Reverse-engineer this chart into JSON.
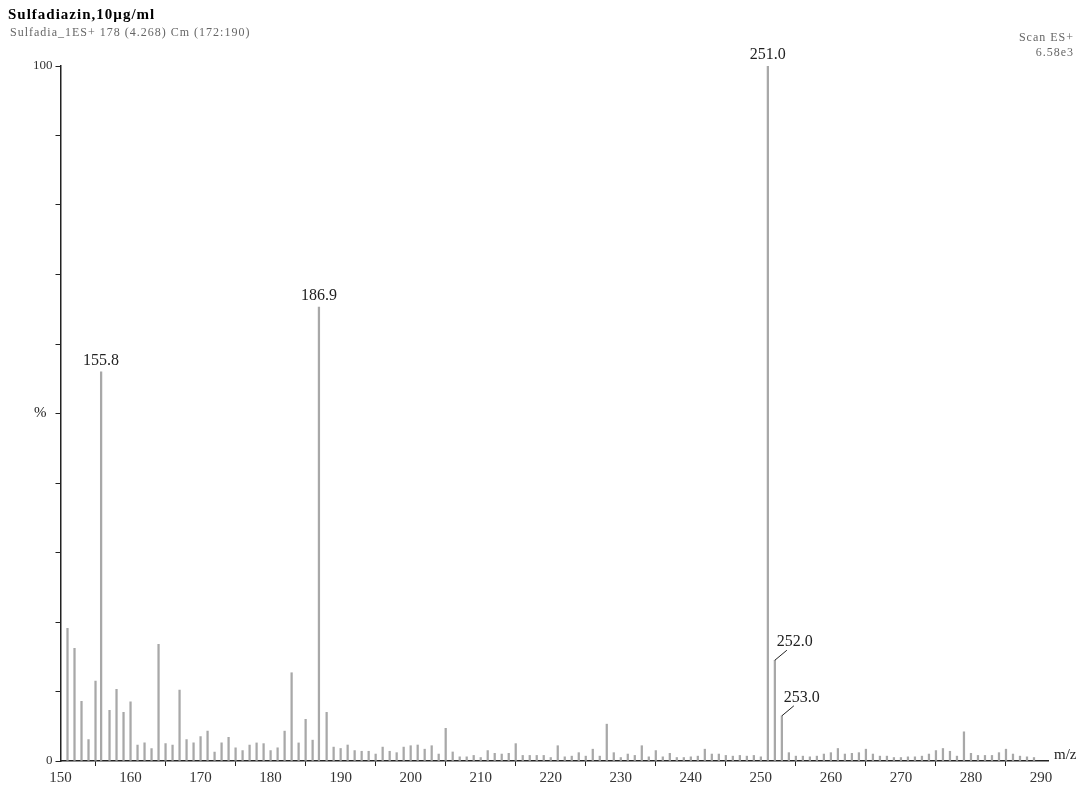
{
  "chart_data": {
    "type": "bar",
    "title": "Sulfadiazin,10µg/ml",
    "subtitle": "Sulfadia_1ES+ 178 (4.268) Cm (172:190)",
    "xlabel": "m/z",
    "ylabel": "%",
    "annotations": [
      "Scan ES+",
      "6.58e3",
      {
        "text": "155.8",
        "x": 155.8,
        "y": 56.0
      },
      {
        "text": "186.9",
        "x": 186.9,
        "y": 65.3
      },
      {
        "text": "251.0",
        "x": 251.0,
        "y": 100
      },
      {
        "text": "252.0",
        "x": 252.0,
        "y": 14.5
      },
      {
        "text": "253.0",
        "x": 253.0,
        "y": 6.5
      }
    ],
    "x": [
      151,
      152,
      153,
      154,
      155,
      155.8,
      157,
      158,
      159,
      160,
      161,
      162,
      163,
      164,
      165,
      166,
      167,
      168,
      169,
      170,
      171,
      172,
      173,
      174,
      175,
      176,
      177,
      178,
      179,
      180,
      181,
      182,
      183,
      184,
      185,
      186,
      186.9,
      188,
      189,
      190,
      191,
      192,
      193,
      194,
      195,
      196,
      197,
      198,
      199,
      200,
      201,
      202,
      203,
      204,
      205,
      206,
      207,
      208,
      209,
      210,
      211,
      212,
      213,
      214,
      215,
      216,
      217,
      218,
      219,
      220,
      221,
      222,
      223,
      224,
      225,
      226,
      227,
      228,
      229,
      230,
      231,
      232,
      233,
      234,
      235,
      236,
      237,
      238,
      239,
      240,
      241,
      242,
      243,
      244,
      245,
      246,
      247,
      248,
      249,
      250,
      251.0,
      252.0,
      253.0,
      254,
      255,
      256,
      257,
      258,
      259,
      260,
      261,
      262,
      263,
      264,
      265,
      266,
      267,
      268,
      269,
      270,
      271,
      272,
      273,
      274,
      275,
      276,
      277,
      278,
      279,
      280,
      281,
      282,
      283,
      284,
      285,
      286,
      287,
      288,
      289
    ],
    "series": [
      {
        "color": "#a8a8a8",
        "values": [
          19.1,
          16.2,
          8.6,
          3.1,
          11.5,
          56.0,
          7.3,
          10.3,
          7.0,
          8.5,
          2.3,
          2.6,
          1.8,
          16.8,
          2.5,
          2.3,
          10.2,
          3.1,
          2.6,
          3.5,
          4.3,
          1.3,
          2.6,
          3.4,
          1.9,
          1.5,
          2.3,
          2.6,
          2.5,
          1.5,
          1.9,
          4.3,
          12.7,
          2.6,
          6.0,
          3.0,
          65.3,
          7.0,
          2.0,
          1.8,
          2.3,
          1.5,
          1.4,
          1.4,
          1.0,
          2.0,
          1.4,
          1.2,
          2.0,
          2.2,
          2.3,
          1.7,
          2.2,
          1.0,
          4.7,
          1.3,
          0.6,
          0.6,
          0.8,
          0.5,
          1.5,
          1.1,
          1.0,
          1.1,
          2.5,
          0.8,
          0.8,
          0.8,
          0.8,
          0.5,
          2.2,
          0.6,
          0.7,
          1.2,
          0.7,
          1.7,
          0.7,
          5.3,
          1.2,
          0.5,
          1.0,
          0.8,
          2.2,
          0.6,
          1.5,
          0.6,
          1.1,
          0.5,
          0.5,
          0.6,
          0.7,
          1.7,
          1.0,
          1.0,
          0.8,
          0.7,
          0.8,
          0.7,
          0.8,
          0.6,
          100,
          14.5,
          6.5,
          1.2,
          0.7,
          0.7,
          0.6,
          0.7,
          1.0,
          1.2,
          1.8,
          1.0,
          1.1,
          1.2,
          1.7,
          1.0,
          0.7,
          0.7,
          0.5,
          0.5,
          0.6,
          0.6,
          0.7,
          1.0,
          1.5,
          1.8,
          1.4,
          0.7,
          4.2,
          1.1,
          0.8,
          0.8,
          0.8,
          1.2,
          1.7,
          1.0,
          0.7,
          0.6,
          0.5
        ]
      }
    ],
    "xlim": [
      150,
      291
    ],
    "xticks": [
      150,
      160,
      170,
      180,
      190,
      200,
      210,
      220,
      230,
      240,
      250,
      260,
      270,
      280,
      290
    ],
    "ylim": [
      0,
      100
    ],
    "yticks": [
      0,
      {
        "value": 10,
        "label": null
      },
      {
        "value": 20,
        "label": null
      },
      {
        "value": 30,
        "label": null
      },
      {
        "value": 40,
        "label": null
      },
      {
        "value": 50,
        "label": null
      },
      {
        "value": 60,
        "label": null
      },
      {
        "value": 70,
        "label": null
      },
      {
        "value": 80,
        "label": null
      },
      {
        "value": 90,
        "label": null
      },
      100
    ],
    "grid": false,
    "legend": false
  }
}
